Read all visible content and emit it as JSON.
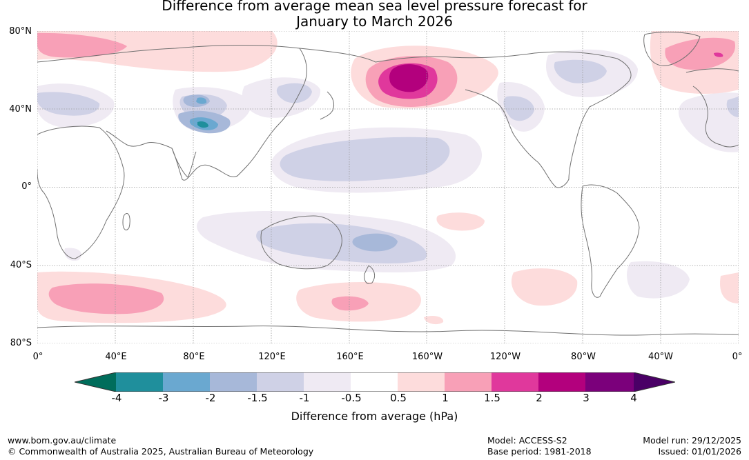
{
  "title_line1": "Difference from average mean sea level pressure forecast for",
  "title_line2": "January to March 2026",
  "map": {
    "lat_labels": [
      "80°N",
      "40°N",
      "0°",
      "40°S",
      "80°S"
    ],
    "lon_labels": [
      "0°",
      "40°E",
      "80°E",
      "120°E",
      "160°E",
      "160°W",
      "120°W",
      "80°W",
      "40°W",
      "0°"
    ],
    "anomaly_regions": [
      {
        "name": "north-pacific-aleutian-high",
        "location": "Aleutians / Bering Sea",
        "peak_hpa": 3
      },
      {
        "name": "arctic-atlantic-high",
        "location": "Greenland Sea / Svalbard",
        "peak_hpa": 2
      },
      {
        "name": "north-atlantic-europe-high",
        "location": "North Atlantic / Europe",
        "peak_hpa": 1
      },
      {
        "name": "southern-indian-ocean-high",
        "location": "South of Africa",
        "peak_hpa": 1.5
      },
      {
        "name": "southern-pacific-high",
        "location": "South of New Zealand",
        "peak_hpa": 1.5
      },
      {
        "name": "tibetan-plateau-low",
        "location": "Central Asia / Tibet",
        "peak_hpa": -3
      },
      {
        "name": "tropical-pacific-low",
        "location": "West-central Pacific",
        "peak_hpa": -1
      },
      {
        "name": "australian-tasman-low",
        "location": "Australia / Tasman Sea",
        "peak_hpa": -2
      },
      {
        "name": "canada-low",
        "location": "Northern Canada",
        "peak_hpa": -1
      }
    ]
  },
  "colorbar": {
    "ticks": [
      "-4",
      "-3",
      "-2",
      "-1.5",
      "-1",
      "-0.5",
      "0.5",
      "1",
      "1.5",
      "2",
      "3",
      "4"
    ],
    "colors": {
      "below_min": "#006d5b",
      "m4_m3": "#1f8f9c",
      "m3_m2": "#6aa8d0",
      "m2_m15": "#a7b8d9",
      "m15_m1": "#cfd1e6",
      "m1_m05": "#efeaf3",
      "m05_05": "#ffffff",
      "p05_1": "#fddcdc",
      "p1_15": "#f8a0b7",
      "p15_2": "#e0389c",
      "p2_3": "#b3007d",
      "p3_4": "#7b007b",
      "above_max": "#4a0066"
    },
    "label": "Difference from average (hPa)"
  },
  "footer": {
    "url": "www.bom.gov.au/climate",
    "copyright": "© Commonwealth of Australia 2025, Australian Bureau of Meteorology",
    "model": "Model: ACCESS-S2",
    "base_period": "Base period: 1981-2018",
    "model_run": "Model run: 29/12/2025",
    "issued": "Issued: 01/01/2026"
  }
}
